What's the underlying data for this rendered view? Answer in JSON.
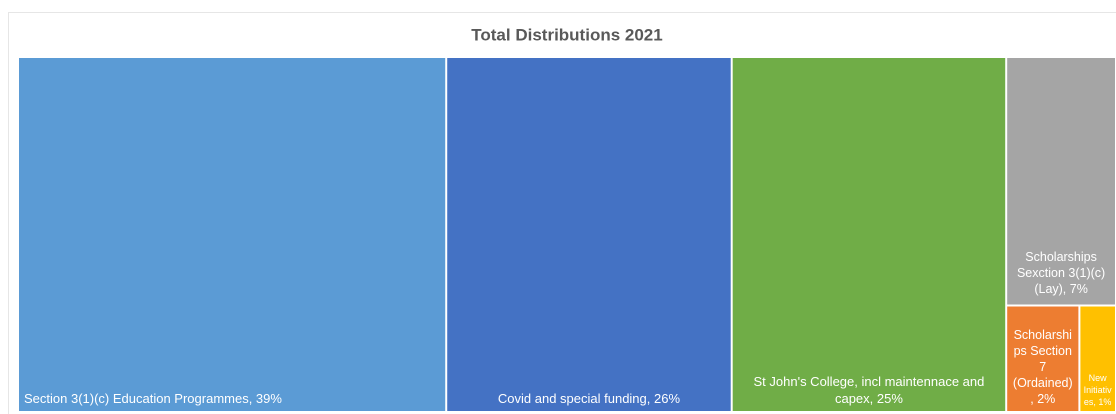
{
  "chart_data": {
    "type": "treemap",
    "title": "Total Distributions 2021",
    "categories": [
      "Section 3(1)(c) Education Programmes, 39%",
      "Covid and special funding, 26%",
      "St John's College, incl maintennace and capex, 25%",
      "Scholarships Sexction 3(1)(c) (Lay), 7%",
      "Scholarships Section 7 (Ordained), 2%",
      "New Initiatives, 1%"
    ],
    "values": [
      39,
      26,
      25,
      7,
      2,
      1
    ],
    "colors": [
      "#5b9bd5",
      "#4472c4",
      "#70ad47",
      "#a5a5a5",
      "#ed7d31",
      "#ffc000"
    ]
  }
}
